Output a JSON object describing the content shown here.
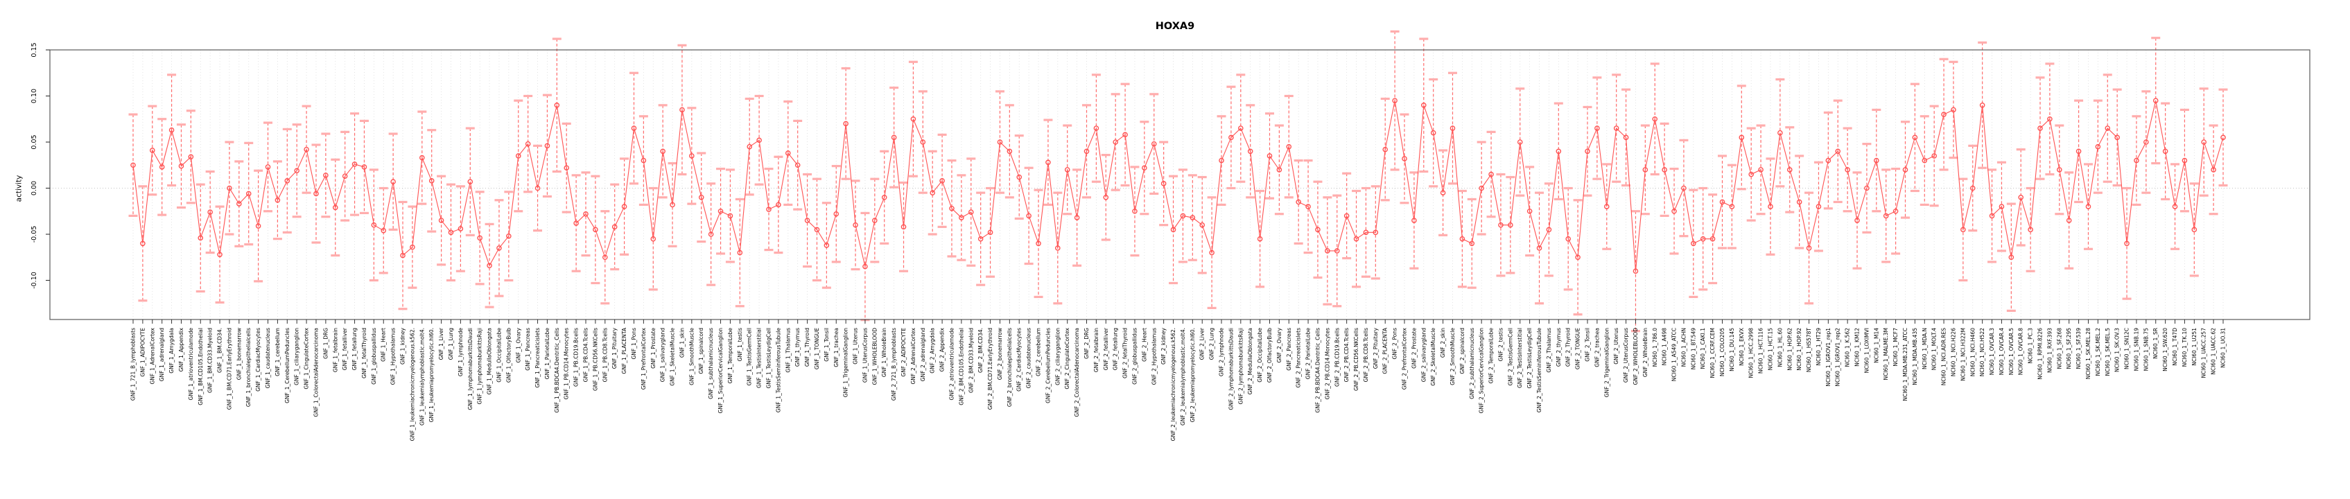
{
  "title": "HOXA9",
  "chart_data": {
    "type": "line",
    "subtype": "points-with-error-bars",
    "title": "HOXA9",
    "xlabel": "",
    "ylabel": "activity",
    "yticks": [
      -0.1,
      -0.05,
      0.0,
      0.05,
      0.1,
      0.15
    ],
    "ytick_labels": [
      "-0.10",
      "-0.05",
      "0.00",
      "0.05",
      "0.10",
      "0.15"
    ],
    "ylim": [
      -0.1425,
      0.15
    ],
    "grid": "vertical-dotted-per-category-plus-zero-line",
    "legend_position": "none",
    "colors": {
      "series": "#ff5252",
      "error_bar": "#ff6b6b",
      "error_cap": "#ffadad",
      "grid": "#dcdcdc",
      "zero_line": "#c4c4c4",
      "box": "#5a5a5a",
      "tick": "#333333",
      "text": "#000000",
      "background": "#ffffff"
    },
    "categories": [
      "GNF_1_721_B_lymphoblasts",
      "GNF_1_ADIPOCYTE",
      "GNF_1_AdrenalCortex",
      "GNF_1_adrenalgland",
      "GNF_1_Amygdala",
      "GNF_1_Appendix",
      "GNF_1_atrioventricularnode",
      "GNF_1_BM.CD105.Endothelial",
      "GNF_1_BM.CD33.Myeloid",
      "GNF_1_BM.CD34.",
      "GNF_1_BM.CD71.EarlyErythroid",
      "GNF_1_bonemarrow",
      "GNF_1_bronchialepithelialcells",
      "GNF_1_CardiacMyocytes",
      "GNF_1_caudatenucleus",
      "GNF_1_cerebellum",
      "GNF_1_CerebellumPeduncles",
      "GNF_1_ciliaryganglion",
      "GNF_1_CingulateCortex",
      "GNF_1_ColorectalAdenocarcinoma",
      "GNF_1_DRG",
      "GNF_1_fetalbrain",
      "GNF_1_fetalliver",
      "GNF_1_fetallung",
      "GNF_1_fetalThyroid",
      "GNF_1_globuspallidus",
      "GNF_1_Heart",
      "GNF_1_Hypothalamus",
      "GNF_1_kidney",
      "GNF_1_leukemiachronicmyelogenous.k562.",
      "GNF_1_leukemialymphoblastic.molt4.",
      "GNF_1_leukemiapromyelocytic.hl60.",
      "GNF_1_Liver",
      "GNF_1_Lung",
      "GNF_1_lymphnode",
      "GNF_1_lymphomaburkittsDaudi",
      "GNF_1_lymphomaburkittsRaji",
      "GNF_1_MedullaOblongata",
      "GNF_1_OccipitalLobe",
      "GNF_1_OlfactoryBulb",
      "GNF_1_Ovary",
      "GNF_1_Pancreas",
      "GNF_1_Pancreaticislets",
      "GNF_1_ParietalLobe",
      "GNF_1_PB.BDCA4.Dentritic_Cells",
      "GNF_1_PB.CD14.Monocytes",
      "GNF_1_PB.CD19.Bcells",
      "GNF_1_PB.CD4.Tcells",
      "GNF_1_PB.CD56.NKCells",
      "GNF_1_PB.CD8.Tcells",
      "GNF_1_Pituitary",
      "GNF_1_PLACENTA",
      "GNF_1_Pons",
      "GNF_1_PrefrontalCortex",
      "GNF_1_Prostate",
      "GNF_1_salivarygland",
      "GNF_1_SkeletalMuscle",
      "GNF_1_skin",
      "GNF_1_SmoothMuscle",
      "GNF_1_spinalcord",
      "GNF_1_subthalamicnucleus",
      "GNF_1_SuperiorCervicalGanglion",
      "GNF_1_TemporalLobe",
      "GNF_1_testis",
      "GNF_1_TestisGermCell",
      "GNF_1_TestisInterstitial",
      "GNF_1_TestisLeydigCell",
      "GNF_1_TestisSeminiferousTubule",
      "GNF_1_Thalamus",
      "GNF_1_thymus",
      "GNF_1_Thyroid",
      "GNF_1_TONGUE",
      "GNF_1_Tonsil",
      "GNF_1_trachea",
      "GNF_1_TrigeminalGanglion",
      "GNF_1_Uterus",
      "GNF_1_UterusCorpus",
      "GNF_1_WHOLEBLOOD",
      "GNF_1_WholeBrain",
      "GNF_2_721_B_lymphoblasts",
      "GNF_2_ADIPOCYTE",
      "GNF_2_AdrenalCortex",
      "GNF_2_adrenalgland",
      "GNF_2_Amygdala",
      "GNF_2_Appendix",
      "GNF_2_atrioventricularnode",
      "GNF_2_BM.CD105.Endothelial",
      "GNF_2_BM.CD33.Myeloid",
      "GNF_2_BM.CD34.",
      "GNF_2_BM.CD71.EarlyErythroid",
      "GNF_2_bonemarrow",
      "GNF_2_bronchialepithelialcells",
      "GNF_2_CardiacMyocytes",
      "GNF_2_caudatenucleus",
      "GNF_2_cerebellum",
      "GNF_2_CerebellumPeduncles",
      "GNF_2_ciliaryganglion",
      "GNF_2_CingulateCortex",
      "GNF_2_ColorectalAdenocarcinoma",
      "GNF_2_DRG",
      "GNF_2_fetalbrain",
      "GNF_2_fetalliver",
      "GNF_2_fetallung",
      "GNF_2_fetalThyroid",
      "GNF_2_globuspallidus",
      "GNF_2_Heart",
      "GNF_2_Hypothalamus",
      "GNF_2_kidney",
      "GNF_2_leukemiachronicmyelogenous.k562.",
      "GNF_2_leukemialymphoblastic.molt4.",
      "GNF_2_leukemiapromyelocytic.hl60.",
      "GNF_2_Liver",
      "GNF_2_Lung",
      "GNF_2_lymphnode",
      "GNF_2_lymphomaburkittsDaudi",
      "GNF_2_lymphomaburkittsRaji",
      "GNF_2_MedullaOblongata",
      "GNF_2_OccipitalLobe",
      "GNF_2_OlfactoryBulb",
      "GNF_2_Ovary",
      "GNF_2_Pancreas",
      "GNF_2_Pancreaticislets",
      "GNF_2_ParietalLobe",
      "GNF_2_PB.BDCA4.Dentritic_Cells",
      "GNF_2_PB.CD14.Monocytes",
      "GNF_2_PB.CD19.Bcells",
      "GNF_2_PB.CD4.Tcells",
      "GNF_2_PB.CD56.NKCells",
      "GNF_2_PB.CD8.Tcells",
      "GNF_2_Pituitary",
      "GNF_2_PLACENTA",
      "GNF_2_Pons",
      "GNF_2_PrefrontalCortex",
      "GNF_2_Prostate",
      "GNF_2_salivarygland",
      "GNF_2_SkeletalMuscle",
      "GNF_2_skin",
      "GNF_2_SmoothMuscle",
      "GNF_2_spinalcord",
      "GNF_2_subthalamicnucleus",
      "GNF_2_SuperiorCervicalGanglion",
      "GNF_2_TemporalLobe",
      "GNF_2_testis",
      "GNF_2_TestisGermCell",
      "GNF_2_TestisInterstitial",
      "GNF_2_TestisLeydigCell",
      "GNF_2_TestisSeminiferousTubule",
      "GNF_2_Thalamus",
      "GNF_2_thymus",
      "GNF_2_Thyroid",
      "GNF_2_TONGUE",
      "GNF_2_Tonsil",
      "GNF_2_trachea",
      "GNF_2_TrigeminalGanglion",
      "GNF_2_Uterus",
      "GNF_2_UterusCorpus",
      "GNF_2_WHOLEBLOOD",
      "GNF_2_WholeBrain",
      "NCI60_1_786.0",
      "NCI60_1_A498",
      "NCI60_1_A549_ATCC",
      "NCI60_1_ACHN",
      "NCI60_1_BT.549",
      "NCI60_1_CAKI.1",
      "NCI60_1_CCRF.CEM",
      "NCI60_1_COLO205",
      "NCI60_1_DU.145",
      "NCI60_1_EKVX",
      "NCI60_1_HCC.2998",
      "NCI60_1_HCT.116",
      "NCI60_1_HCT.15",
      "NCI60_1_HL.60",
      "NCI60_1_HOP.62",
      "NCI60_1_HOP.92",
      "NCI60_1_HS578T",
      "NCI60_1_HT29",
      "NCI60_1_IGROV1_rep1",
      "NCI60_1_IGROV1_rep2",
      "NCI60_1_K.562",
      "NCI60_1_KM12",
      "NCI60_1_LOXIMVI",
      "NCI60_1_M14",
      "NCI60_1_MALME.3M",
      "NCI60_1_MCF7",
      "NCI60_1_MDA.MB.231_ATCC",
      "NCI60_1_MDA.MB.435",
      "NCI60_1_MDA.N",
      "NCI60_1_MOLT.4",
      "NCI60_1_NCI.ADR.RES",
      "NCI60_1_NCI.H226",
      "NCI60_1_NCI.H322M",
      "NCI60_1_NCI.H460",
      "NCI60_1_NCI.H522",
      "NCI60_1_OVCAR.3",
      "NCI60_1_OVCAR.4",
      "NCI60_1_OVCAR.5",
      "NCI60_1_OVCAR.8",
      "NCI60_1_PC.3",
      "NCI60_1_RPMI.8226",
      "NCI60_1_RXF.393",
      "NCI60_1_SF.268",
      "NCI60_1_SF.295",
      "NCI60_1_SF.539",
      "NCI60_1_SK.MEL.28",
      "NCI60_1_SK.MEL.2",
      "NCI60_1_SK.MEL.5",
      "NCI60_1_SK.OV.3",
      "NCI60_1_SN12C",
      "NCI60_1_SNB.19",
      "NCI60_1_SNB.75",
      "NCI60_1_SR",
      "NCI60_1_SW.620",
      "NCI60_1_T47D",
      "NCI60_1_TK.10",
      "NCI60_1_U251",
      "NCI60_1_UACC.257",
      "NCI60_1_UACC.62",
      "NCI60_1_UO.31"
    ],
    "values": [
      0.025,
      -0.06,
      0.041,
      0.023,
      0.063,
      0.024,
      0.034,
      -0.054,
      -0.026,
      -0.072,
      0.0,
      -0.017,
      -0.006,
      -0.041,
      0.023,
      -0.013,
      0.008,
      0.019,
      0.042,
      -0.006,
      0.014,
      -0.021,
      0.013,
      0.026,
      0.023,
      -0.04,
      -0.046,
      0.007,
      -0.073,
      -0.064,
      0.033,
      0.008,
      -0.035,
      -0.048,
      -0.044,
      0.007,
      -0.054,
      -0.084,
      -0.065,
      -0.052,
      0.035,
      0.048,
      0.0,
      0.046,
      0.09,
      0.022,
      -0.038,
      -0.028,
      -0.045,
      -0.075,
      -0.042,
      -0.02,
      0.065,
      0.03,
      -0.055,
      0.04,
      -0.018,
      0.085,
      0.035,
      -0.01,
      -0.05,
      -0.025,
      -0.03,
      -0.07,
      0.045,
      0.052,
      -0.023,
      -0.018,
      0.038,
      0.025,
      -0.035,
      -0.045,
      -0.062,
      -0.028,
      0.07,
      -0.04,
      -0.085,
      -0.035,
      -0.01,
      0.055,
      -0.042,
      0.075,
      0.05,
      -0.005,
      0.008,
      -0.022,
      -0.032,
      -0.026,
      -0.055,
      -0.048,
      0.05,
      0.04,
      0.012,
      -0.03,
      -0.06,
      0.028,
      -0.065,
      0.02,
      -0.032,
      0.04,
      0.065,
      -0.01,
      0.05,
      0.058,
      -0.025,
      0.022,
      0.048,
      0.005,
      -0.045,
      -0.03,
      -0.032,
      -0.04,
      -0.07,
      0.03,
      0.055,
      0.065,
      0.04,
      -0.055,
      0.035,
      0.02,
      0.045,
      -0.015,
      -0.02,
      -0.045,
      -0.068,
      -0.068,
      -0.03,
      -0.055,
      -0.048,
      -0.048,
      0.042,
      0.095,
      0.032,
      -0.035,
      0.09,
      0.06,
      -0.005,
      0.065,
      -0.055,
      -0.06,
      0.0,
      0.015,
      -0.04,
      -0.04,
      0.05,
      -0.025,
      -0.065,
      -0.045,
      0.04,
      -0.055,
      -0.075,
      0.04,
      0.065,
      -0.02,
      0.065,
      0.055,
      -0.09,
      0.02,
      0.075,
      0.02,
      -0.025,
      0.0,
      -0.06,
      -0.055,
      -0.055,
      -0.015,
      -0.02,
      0.055,
      0.015,
      0.02,
      -0.02,
      0.06,
      0.02,
      -0.015,
      -0.065,
      -0.02,
      0.03,
      0.04,
      0.02,
      -0.035,
      0.0,
      0.03,
      -0.03,
      -0.025,
      0.02,
      0.055,
      0.03,
      0.035,
      0.08,
      0.085,
      -0.045,
      0.0,
      0.09,
      -0.03,
      -0.02,
      -0.075,
      -0.01,
      -0.045,
      0.065,
      0.075,
      0.02,
      -0.035,
      0.04,
      -0.02,
      0.045,
      0.065,
      0.055,
      -0.06,
      0.03,
      0.05,
      0.095,
      0.04,
      -0.02,
      0.03,
      -0.045,
      0.05,
      0.02,
      0.055
    ],
    "errors": [
      0.055,
      0.062,
      0.048,
      0.052,
      0.06,
      0.045,
      0.05,
      0.058,
      0.044,
      0.052,
      0.05,
      0.046,
      0.055,
      0.06,
      0.048,
      0.042,
      0.056,
      0.05,
      0.047,
      0.053,
      0.045,
      0.052,
      0.048,
      0.055,
      0.05,
      0.06,
      0.046,
      0.052,
      0.058,
      0.044,
      0.05,
      0.055,
      0.048,
      0.052,
      0.046,
      0.058,
      0.05,
      0.045,
      0.052,
      0.048,
      0.06,
      0.052,
      0.046,
      0.055,
      0.072,
      0.048,
      0.052,
      0.045,
      0.058,
      0.05,
      0.046,
      0.052,
      0.06,
      0.048,
      0.055,
      0.05,
      0.045,
      0.07,
      0.052,
      0.048,
      0.055,
      0.046,
      0.05,
      0.058,
      0.052,
      0.048,
      0.044,
      0.052,
      0.056,
      0.048,
      0.05,
      0.055,
      0.046,
      0.052,
      0.06,
      0.048,
      0.058,
      0.045,
      0.05,
      0.054,
      0.048,
      0.062,
      0.055,
      0.045,
      0.05,
      0.052,
      0.046,
      0.058,
      0.05,
      0.048,
      0.055,
      0.05,
      0.045,
      0.052,
      0.058,
      0.046,
      0.06,
      0.048,
      0.052,
      0.05,
      0.058,
      0.046,
      0.052,
      0.055,
      0.048,
      0.05,
      0.054,
      0.045,
      0.058,
      0.05,
      0.046,
      0.052,
      0.06,
      0.048,
      0.055,
      0.058,
      0.05,
      0.052,
      0.046,
      0.048,
      0.055,
      0.045,
      0.05,
      0.052,
      0.058,
      0.06,
      0.046,
      0.052,
      0.048,
      0.05,
      0.055,
      0.075,
      0.048,
      0.052,
      0.072,
      0.058,
      0.046,
      0.06,
      0.052,
      0.048,
      0.05,
      0.046,
      0.055,
      0.052,
      0.058,
      0.048,
      0.06,
      0.05,
      0.052,
      0.055,
      0.062,
      0.048,
      0.055,
      0.046,
      0.058,
      0.052,
      0.065,
      0.048,
      0.06,
      0.05,
      0.046,
      0.052,
      0.058,
      0.055,
      0.048,
      0.05,
      0.045,
      0.056,
      0.05,
      0.048,
      0.052,
      0.058,
      0.046,
      0.05,
      0.06,
      0.048,
      0.052,
      0.055,
      0.045,
      0.052,
      0.048,
      0.055,
      0.05,
      0.046,
      0.052,
      0.058,
      0.048,
      0.054,
      0.06,
      0.052,
      0.055,
      0.046,
      0.068,
      0.05,
      0.048,
      0.058,
      0.052,
      0.045,
      0.055,
      0.06,
      0.048,
      0.052,
      0.055,
      0.046,
      0.05,
      0.058,
      0.052,
      0.06,
      0.048,
      0.055,
      0.068,
      0.052,
      0.046,
      0.055,
      0.05,
      0.058,
      0.048,
      0.052
    ]
  }
}
